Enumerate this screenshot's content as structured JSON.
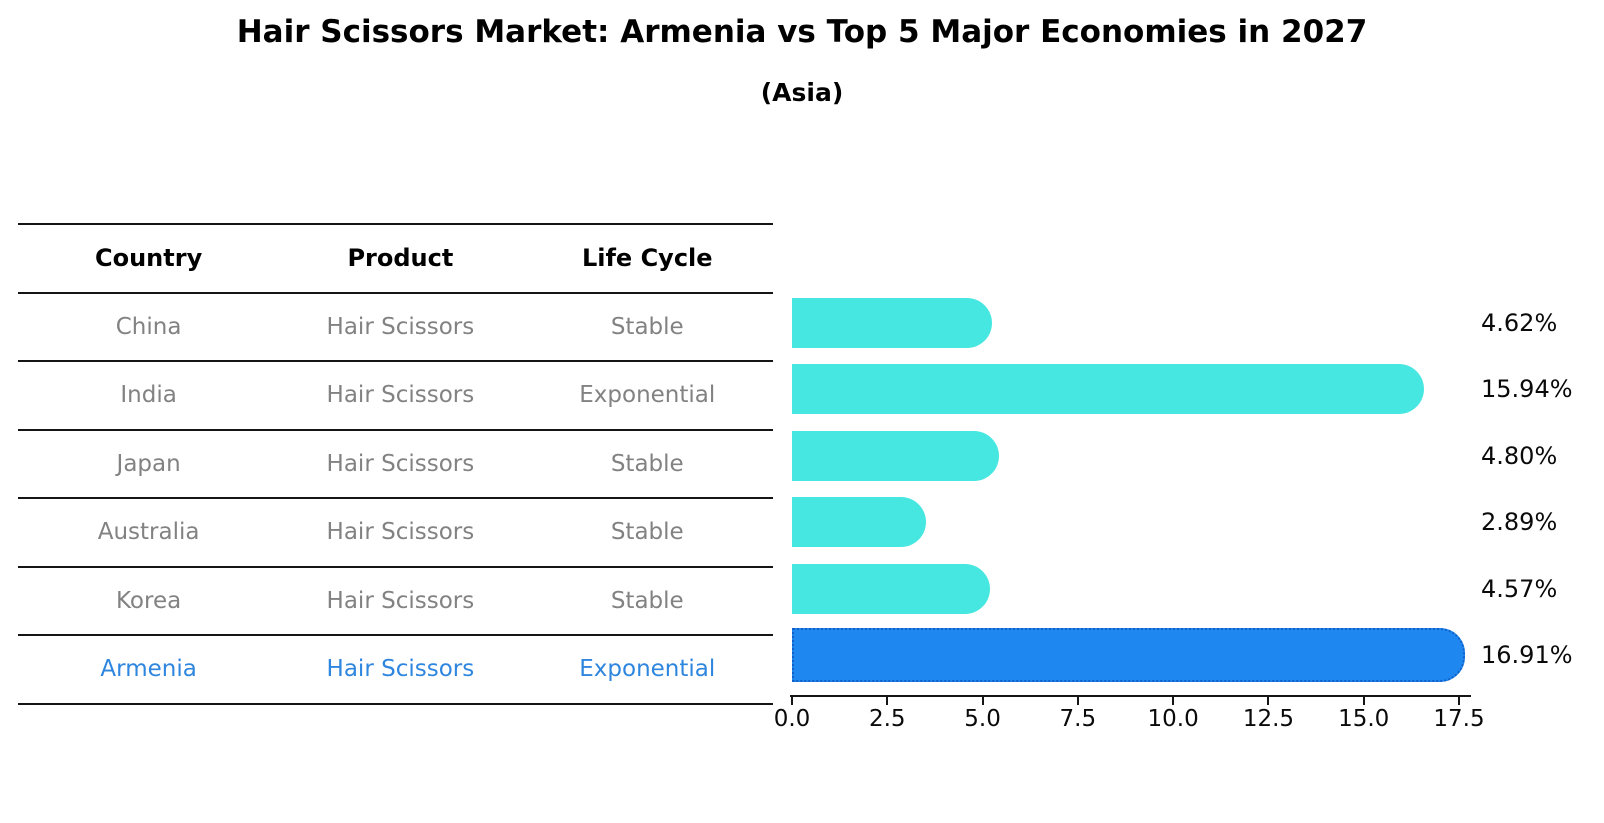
{
  "title": "Hair Scissors Market: Armenia vs Top 5 Major Economies in 2027",
  "subtitle": "(Asia)",
  "table": {
    "headers": [
      "Country",
      "Product",
      "Life Cycle"
    ],
    "rows": [
      {
        "country": "China",
        "product": "Hair Scissors",
        "life_cycle": "Stable",
        "highlight": false
      },
      {
        "country": "India",
        "product": "Hair Scissors",
        "life_cycle": "Exponential",
        "highlight": false
      },
      {
        "country": "Japan",
        "product": "Hair Scissors",
        "life_cycle": "Stable",
        "highlight": false
      },
      {
        "country": "Australia",
        "product": "Hair Scissors",
        "life_cycle": "Stable",
        "highlight": false
      },
      {
        "country": "Korea",
        "product": "Hair Scissors",
        "life_cycle": "Stable",
        "highlight": false
      },
      {
        "country": "Armenia",
        "product": "Hair Scissors",
        "life_cycle": "Exponential",
        "highlight": true
      }
    ]
  },
  "chart_data": {
    "type": "bar",
    "orientation": "horizontal",
    "title": "Hair Scissors Market: Armenia vs Top 5 Major Economies in 2027",
    "subtitle": "(Asia)",
    "categories": [
      "China",
      "India",
      "Japan",
      "Australia",
      "Korea",
      "Armenia"
    ],
    "values": [
      4.62,
      15.94,
      4.8,
      2.89,
      4.57,
      16.91
    ],
    "value_labels": [
      "4.62%",
      "15.94%",
      "4.80%",
      "2.89%",
      "4.57%",
      "16.91%"
    ],
    "x_ticks": [
      "0.0",
      "2.5",
      "5.0",
      "7.5",
      "10.0",
      "12.5",
      "15.0",
      "17.5"
    ],
    "xlim": [
      0,
      17.5
    ],
    "xlabel": "",
    "ylabel": "",
    "grid": false,
    "legend": "none",
    "highlight_category": "Armenia",
    "colors": {
      "bar_default": "#47E7E1",
      "bar_highlight": "#1E88F0",
      "bar_highlight_border": "#1060C8",
      "highlight_text": "#2E86DE",
      "row_text": "#828282",
      "axis": "#151515",
      "label_text": "#0a0a0a"
    }
  }
}
